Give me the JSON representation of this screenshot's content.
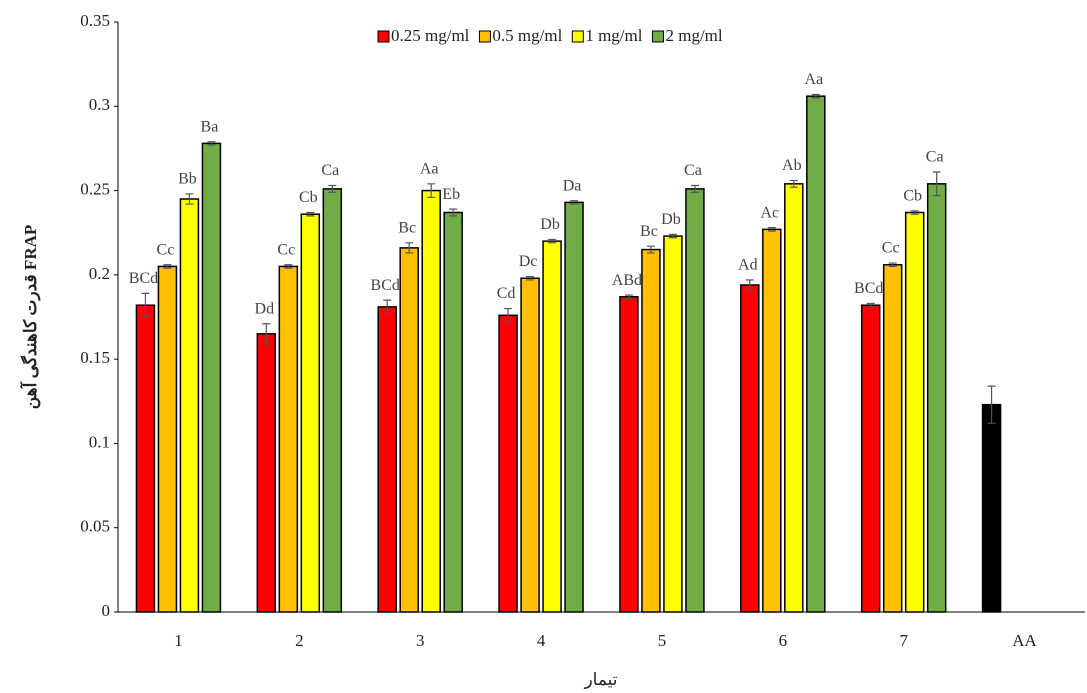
{
  "chart_data": {
    "type": "bar",
    "ylabel": "قدرت کاهندگی آهن FRAP",
    "xlabel": "تیمار",
    "categories": [
      "1",
      "2",
      "3",
      "4",
      "5",
      "6",
      "7",
      "AA"
    ],
    "ylim": [
      0,
      0.35
    ],
    "yticks": [
      0,
      0.05,
      0.1,
      0.15,
      0.2,
      0.25,
      0.3,
      0.35
    ],
    "grid": false,
    "legend": "top",
    "series": [
      {
        "name": "0.25 mg/ml",
        "color": "#ff0000",
        "colors": [
          "#ff0000",
          "#ff0000",
          "#ff0000",
          "#ff0000",
          "#ff0000",
          "#ff0000",
          "#ff0000",
          "#000000"
        ],
        "values": [
          0.182,
          0.165,
          0.181,
          0.176,
          0.187,
          0.194,
          0.182,
          0.123
        ],
        "errors": [
          0.007,
          0.006,
          0.004,
          0.004,
          0.001,
          0.003,
          0.001,
          0.011
        ],
        "labels": [
          "BCd",
          "Dd",
          "BCd",
          "Cd",
          "ABd",
          "Ad",
          "BCd",
          null
        ]
      },
      {
        "name": "0.5 mg/ml",
        "color": "#ffc000",
        "values": [
          0.205,
          0.205,
          0.216,
          0.198,
          0.215,
          0.227,
          0.206,
          null
        ],
        "errors": [
          0.001,
          0.001,
          0.003,
          0.001,
          0.002,
          0.001,
          0.001,
          null
        ],
        "labels": [
          "Cc",
          "Cc",
          "Bc",
          "Dc",
          "Bc",
          "Ac",
          "Cc",
          null
        ]
      },
      {
        "name": "1 mg/ml",
        "color": "#ffff00",
        "values": [
          0.245,
          0.236,
          0.25,
          0.22,
          0.223,
          0.254,
          0.237,
          null
        ],
        "errors": [
          0.003,
          0.001,
          0.004,
          0.001,
          0.001,
          0.002,
          0.001,
          null
        ],
        "labels": [
          "Bb",
          "Cb",
          "Aa",
          "Db",
          "Db",
          "Ab",
          "Cb",
          null
        ]
      },
      {
        "name": "2 mg/ml",
        "color": "#70ad47",
        "values": [
          0.278,
          0.251,
          0.237,
          0.243,
          0.251,
          0.306,
          0.254,
          null
        ],
        "errors": [
          0.001,
          0.002,
          0.002,
          0.001,
          0.002,
          0.001,
          0.007,
          null
        ],
        "labels": [
          "Ba",
          "Ca",
          "Eb",
          "Da",
          "Ca",
          "Aa",
          "Ca",
          null
        ]
      }
    ]
  }
}
